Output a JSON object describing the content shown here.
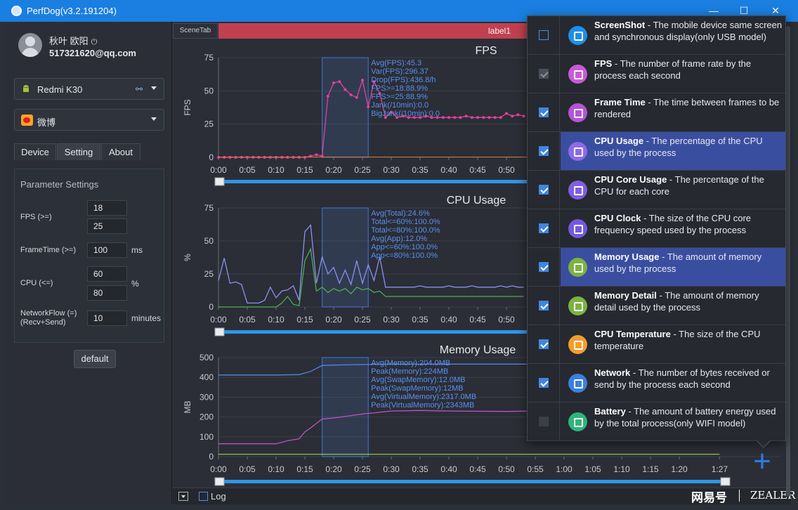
{
  "window": {
    "title": "PerfDog(v3.2.191204)",
    "minimize": "—",
    "maximize": "☐",
    "close": "✕"
  },
  "user": {
    "name": "秋叶 欧阳",
    "email": "517321620@qq.com",
    "power_icon": "power-icon"
  },
  "device_select": {
    "value": "Redmi K30"
  },
  "app_select": {
    "value": "微博"
  },
  "tabs": [
    {
      "label": "Device"
    },
    {
      "label": "Setting"
    },
    {
      "label": "About"
    }
  ],
  "params": {
    "title": "Parameter Settings",
    "fps_label": "FPS (>=)",
    "fps_1": "18",
    "fps_2": "25",
    "frametime_label": "FrameTime (>=)",
    "frametime": "100",
    "frametime_unit": "ms",
    "cpu_label": "CPU (<=)",
    "cpu_1": "60",
    "cpu_2": "80",
    "cpu_unit": "%",
    "network_label_1": "NetworkFlow (=)",
    "network_label_2": "(Recv+Send)",
    "network": "10",
    "network_unit": "minutes",
    "default_btn": "default"
  },
  "scenetab": "SceneTab",
  "label_bar": "label1",
  "bottom": {
    "log": "Log"
  },
  "watermark": {
    "left": "网易号",
    "right": "ZEALER"
  },
  "panel_rows": [
    {
      "name": "ScreenShot",
      "desc": "The mobile device same screen and synchronous display(only USB model)",
      "checked": false,
      "disabled": false,
      "highlight": false,
      "color": "#1e8fe8",
      "icon": "camera-icon"
    },
    {
      "name": "FPS",
      "desc": "The number of frame rate by the process each second",
      "checked": true,
      "disabled": true,
      "highlight": false,
      "color": "#c85ad8",
      "icon": "pulse-icon"
    },
    {
      "name": "Frame Time",
      "desc": "The time between frames to be rendered",
      "checked": true,
      "disabled": false,
      "highlight": false,
      "color": "#b554d8",
      "icon": "nodes-icon"
    },
    {
      "name": "CPU Usage",
      "desc": "The percentage of the CPU used by the process",
      "checked": true,
      "disabled": false,
      "highlight": true,
      "color": "#8e6ae8",
      "icon": "chip-icon"
    },
    {
      "name": "CPU Core Usage",
      "desc": "The percentage of the CPU for each core",
      "checked": true,
      "disabled": false,
      "highlight": false,
      "color": "#7f5fe0",
      "icon": "chip-icon"
    },
    {
      "name": "CPU Clock",
      "desc": "The size of the CPU core frequency speed used by the process",
      "checked": true,
      "disabled": false,
      "highlight": false,
      "color": "#7458e0",
      "icon": "chip-icon"
    },
    {
      "name": "Memory Usage",
      "desc": "The amount of memory used by the process",
      "checked": true,
      "disabled": false,
      "highlight": true,
      "color": "#7cb342",
      "icon": "memory-icon"
    },
    {
      "name": "Memory Detail",
      "desc": "The amount of memory detail used by the process",
      "checked": true,
      "disabled": false,
      "highlight": false,
      "color": "#7cb342",
      "icon": "memory-icon"
    },
    {
      "name": "CPU Temperature",
      "desc": "The size of the CPU temperature",
      "checked": true,
      "disabled": false,
      "highlight": false,
      "color": "#f39c2c",
      "icon": "thermometer-icon"
    },
    {
      "name": "Network",
      "desc": "The number of bytes received or send by the process each second",
      "checked": true,
      "disabled": false,
      "highlight": false,
      "color": "#3a7fe3",
      "icon": "network-icon"
    },
    {
      "name": "Battery",
      "desc": "The amount of battery energy used by the total process(only WIFI model)",
      "checked": false,
      "disabled": true,
      "highlight": false,
      "color": "#2fb47c",
      "icon": "battery-icon"
    }
  ],
  "chart_data": [
    {
      "type": "line",
      "title": "FPS",
      "ylabel": "FPS",
      "ylim": [
        0,
        75
      ],
      "yticks": [
        "0",
        "25",
        "50",
        "75"
      ],
      "xticks": [
        "0:00",
        "0:05",
        "0:10",
        "0:15",
        "0:20",
        "0:25",
        "0:30",
        "0:35",
        "0:40",
        "0:45",
        "0:50"
      ],
      "selection": [
        18,
        26
      ],
      "stats": [
        "Avg(FPS):45.3",
        "Var(FPS):296.37",
        "Drop(FPS):436.8/h",
        "FPS>=18:88.9%",
        "FPS>=25:88.9%",
        "Jank(/10min):0.0",
        "BigJank(/10min):0.0"
      ],
      "series": [
        {
          "color": "#e040a0",
          "x": [
            0,
            1,
            2,
            3,
            4,
            5,
            6,
            7,
            8,
            9,
            10,
            11,
            12,
            13,
            14,
            15,
            16,
            17,
            18,
            19,
            20,
            21,
            22,
            23,
            24,
            25,
            26,
            27,
            28,
            29,
            30,
            31,
            32,
            33,
            34,
            35,
            36,
            37,
            38,
            39,
            40,
            41,
            42,
            43,
            44,
            45,
            46,
            47,
            48,
            49,
            50,
            51,
            52,
            53
          ],
          "y": [
            0,
            0,
            0,
            0,
            0,
            0,
            0,
            0,
            0,
            0,
            0,
            0,
            0,
            0,
            0,
            0,
            1,
            2,
            1,
            46,
            56,
            57,
            51,
            47,
            45,
            58,
            38,
            57,
            48,
            30,
            34,
            30,
            31,
            30,
            30,
            30,
            31,
            30,
            30,
            30,
            30,
            30,
            30,
            31,
            30,
            30,
            30,
            30,
            30,
            30,
            33,
            31,
            32,
            31
          ]
        }
      ]
    },
    {
      "type": "line",
      "title": "CPU Usage",
      "ylabel": "%",
      "ylim": [
        0,
        75
      ],
      "yticks": [
        "0",
        "25",
        "50",
        "75"
      ],
      "xticks": [
        "0:00",
        "0:05",
        "0:10",
        "0:15",
        "0:20",
        "0:25",
        "0:30",
        "0:35",
        "0:40",
        "0:45",
        "0:50"
      ],
      "selection": [
        18,
        26
      ],
      "stats": [
        "Avg(Total):24.6%",
        "Total<=60%:100.0%",
        "Total<=80%:100.0%",
        "Avg(App):12.0%",
        "App<=60%:100.0%",
        "App<=80%:100.0%"
      ],
      "series": [
        {
          "color": "#8c8ff0",
          "x": [
            0,
            1,
            2,
            3,
            4,
            5,
            6,
            7,
            8,
            9,
            10,
            11,
            12,
            13,
            14,
            15,
            16,
            17,
            18,
            19,
            20,
            21,
            22,
            23,
            24,
            25,
            26,
            27,
            28,
            29,
            30,
            31,
            32,
            33,
            34,
            35,
            36,
            37,
            38,
            39,
            40,
            41,
            42,
            43,
            44,
            45,
            46,
            47,
            48,
            49,
            50,
            51,
            52,
            53
          ],
          "y": [
            20,
            37,
            18,
            19,
            17,
            3,
            3,
            3,
            5,
            15,
            7,
            12,
            13,
            16,
            5,
            57,
            62,
            18,
            38,
            25,
            30,
            18,
            28,
            17,
            35,
            18,
            32,
            20,
            38,
            15,
            15,
            15,
            15,
            15,
            15,
            16,
            15,
            15,
            15,
            15,
            16,
            15,
            15,
            15,
            16,
            15,
            15,
            15,
            15,
            16,
            15,
            16,
            15,
            15
          ]
        },
        {
          "color": "#4caf50",
          "x": [
            0,
            1,
            2,
            3,
            4,
            5,
            6,
            7,
            8,
            9,
            10,
            11,
            12,
            13,
            14,
            15,
            16,
            17,
            18,
            19,
            20,
            21,
            22,
            23,
            24,
            25,
            26,
            27,
            28,
            29,
            30,
            31,
            32,
            33,
            34,
            35,
            36,
            37,
            38,
            39,
            40,
            41,
            42,
            43,
            44,
            45,
            46,
            47,
            48,
            49,
            50,
            51,
            52,
            53
          ],
          "y": [
            0,
            0,
            0,
            0,
            0,
            0,
            0,
            0,
            0,
            0,
            0,
            3,
            8,
            2,
            1,
            35,
            44,
            12,
            15,
            11,
            14,
            12,
            14,
            10,
            15,
            13,
            14,
            11,
            12,
            8,
            8,
            8,
            8,
            8,
            8,
            8,
            8,
            8,
            8,
            8,
            8,
            8,
            8,
            8,
            8,
            8,
            8,
            8,
            8,
            8,
            8,
            8,
            8,
            8
          ]
        }
      ]
    },
    {
      "type": "line",
      "title": "Memory Usage",
      "ylabel": "MB",
      "ylim": [
        0,
        500
      ],
      "yticks": [
        "0",
        "100",
        "200",
        "300",
        "400",
        "500"
      ],
      "xticks": [
        "0:00",
        "0:05",
        "0:10",
        "0:15",
        "0:20",
        "0:25",
        "0:30",
        "0:35",
        "0:40",
        "0:45",
        "0:50",
        "0:55",
        "1:00",
        "1:05",
        "1:10",
        "1:15",
        "1:20",
        "1:27"
      ],
      "selection": [
        18,
        26
      ],
      "stats": [
        "Avg(Memory):204.0MB",
        "Peak(Memory):224MB",
        "Avg(SwapMemory):12.0MB",
        "Peak(SwapMemory):12MB",
        "Avg(VirtualMemory):2317.0MB",
        "Peak(VirtualMemory):2343MB"
      ],
      "series": [
        {
          "color": "#4d86e8",
          "x": [
            0,
            5,
            10,
            14,
            16,
            18,
            20,
            25,
            30,
            40,
            50,
            54
          ],
          "y": [
            412,
            412,
            412,
            414,
            430,
            460,
            462,
            465,
            467,
            467,
            467,
            467
          ]
        },
        {
          "color": "#c050c8",
          "x": [
            0,
            5,
            10,
            12,
            14,
            15,
            16,
            18,
            20,
            25,
            30,
            35,
            40,
            50,
            54
          ],
          "y": [
            65,
            65,
            65,
            80,
            90,
            125,
            145,
            190,
            195,
            215,
            230,
            233,
            230,
            228,
            230
          ]
        },
        {
          "color": "#8bc34a",
          "x": [
            0,
            10,
            20,
            30,
            40,
            50,
            60,
            70,
            80,
            87
          ],
          "y": [
            12,
            12,
            12,
            12,
            12,
            12,
            12,
            12,
            12,
            12
          ]
        }
      ]
    }
  ]
}
